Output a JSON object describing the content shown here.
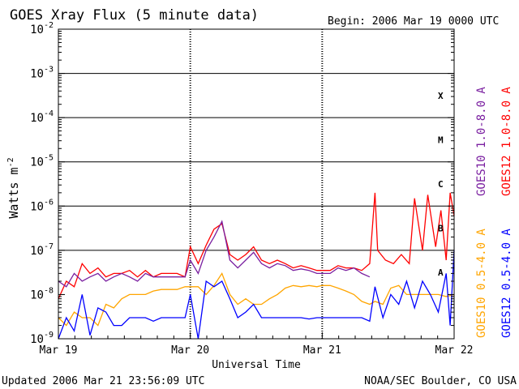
{
  "title": "GOES Xray Flux (5 minute data)",
  "begin": "Begin:  2006 Mar 19 0000 UTC",
  "updated": "Updated 2006 Mar 21 23:56:09 UTC",
  "credit": "NOAA/SEC Boulder, CO USA",
  "colors": {
    "goes10_long": "#7a1fa0",
    "goes12_long": "#ff0000",
    "goes10_short": "#ffa500",
    "goes12_short": "#0000ff"
  },
  "chart_data": {
    "type": "line",
    "title": "GOES Xray Flux (5 minute data)",
    "xlabel": "Universal Time",
    "ylabel": "Watts m",
    "ylabel_sup": "-2",
    "yscale": "log",
    "ylim": [
      1e-09,
      0.01
    ],
    "yticks": [
      {
        "base": "10",
        "exp": "-2"
      },
      {
        "base": "10",
        "exp": "-3"
      },
      {
        "base": "10",
        "exp": "-4"
      },
      {
        "base": "10",
        "exp": "-5"
      },
      {
        "base": "10",
        "exp": "-6"
      },
      {
        "base": "10",
        "exp": "-7"
      },
      {
        "base": "10",
        "exp": "-8"
      },
      {
        "base": "10",
        "exp": "-9"
      }
    ],
    "xticks": [
      "Mar 19",
      "Mar 20",
      "Mar 21",
      "Mar 22"
    ],
    "class_labels": [
      "X",
      "M",
      "C",
      "B",
      "A"
    ],
    "class_grid": [
      1e-07,
      1e-06,
      1e-05,
      0.0001,
      0.001
    ],
    "right_legend": [
      "GOES12 1.0-8.0 A",
      "GOES10 1.0-8.0 A",
      "GOES12 0.5-4.0 A",
      "GOES10 0.5-4.0 A"
    ],
    "series": [
      {
        "name": "GOES12 1.0-8.0 A",
        "color": "#ff0000",
        "x": [
          0,
          0.06,
          0.12,
          0.18,
          0.24,
          0.3,
          0.36,
          0.42,
          0.48,
          0.54,
          0.6,
          0.66,
          0.72,
          0.78,
          0.84,
          0.9,
          0.96,
          1.0,
          1.06,
          1.12,
          1.18,
          1.24,
          1.3,
          1.36,
          1.42,
          1.48,
          1.54,
          1.6,
          1.66,
          1.72,
          1.78,
          1.84,
          1.9,
          1.96,
          2.0,
          2.06,
          2.12,
          2.18,
          2.24,
          2.3,
          2.36,
          2.4,
          2.42,
          2.48,
          2.54,
          2.6,
          2.66,
          2.7,
          2.76,
          2.8,
          2.86,
          2.9,
          2.94,
          2.97,
          3.0
        ],
        "y": [
          8e-09,
          2e-08,
          1.5e-08,
          5e-08,
          3e-08,
          4e-08,
          2.5e-08,
          3e-08,
          3e-08,
          3.5e-08,
          2.5e-08,
          3.5e-08,
          2.5e-08,
          3e-08,
          3e-08,
          3e-08,
          2.5e-08,
          1.2e-07,
          5e-08,
          1.3e-07,
          3e-07,
          4e-07,
          8e-08,
          6e-08,
          8e-08,
          1.2e-07,
          6e-08,
          5e-08,
          6e-08,
          5e-08,
          4e-08,
          4.5e-08,
          4e-08,
          3.5e-08,
          3.5e-08,
          3.5e-08,
          4.5e-08,
          4e-08,
          4e-08,
          3.5e-08,
          5e-08,
          2e-06,
          1e-07,
          6e-08,
          5e-08,
          8e-08,
          5e-08,
          1.5e-06,
          1e-07,
          1.8e-06,
          1.2e-07,
          8e-07,
          6e-08,
          2e-06,
          6e-07
        ]
      },
      {
        "name": "GOES10 1.0-8.0 A",
        "color": "#7a1fa0",
        "x": [
          0,
          0.06,
          0.12,
          0.18,
          0.24,
          0.3,
          0.36,
          0.42,
          0.48,
          0.54,
          0.6,
          0.66,
          0.72,
          0.78,
          0.84,
          0.9,
          0.96,
          1.0,
          1.06,
          1.12,
          1.18,
          1.24,
          1.3,
          1.36,
          1.42,
          1.48,
          1.54,
          1.6,
          1.66,
          1.72,
          1.78,
          1.84,
          1.9,
          1.96,
          2.0,
          2.06,
          2.12,
          2.18,
          2.24,
          2.3,
          2.36
        ],
        "y": [
          2e-08,
          1.5e-08,
          3e-08,
          2e-08,
          2.5e-08,
          3e-08,
          2e-08,
          2.5e-08,
          3e-08,
          2.5e-08,
          2e-08,
          3e-08,
          2.5e-08,
          2.5e-08,
          2.5e-08,
          2.5e-08,
          2.5e-08,
          6e-08,
          3e-08,
          1e-07,
          2e-07,
          4.5e-07,
          6e-08,
          4e-08,
          6e-08,
          9e-08,
          5e-08,
          4e-08,
          5e-08,
          4.5e-08,
          3.5e-08,
          3.8e-08,
          3.5e-08,
          3e-08,
          3e-08,
          3e-08,
          4e-08,
          3.5e-08,
          4e-08,
          3e-08,
          2.5e-08
        ]
      },
      {
        "name": "GOES10 0.5-4.0 A",
        "color": "#ffa500",
        "x": [
          0,
          0.06,
          0.12,
          0.18,
          0.24,
          0.3,
          0.36,
          0.42,
          0.48,
          0.54,
          0.6,
          0.66,
          0.72,
          0.78,
          0.84,
          0.9,
          0.96,
          1.0,
          1.06,
          1.12,
          1.18,
          1.24,
          1.3,
          1.36,
          1.42,
          1.48,
          1.54,
          1.6,
          1.66,
          1.72,
          1.78,
          1.84,
          1.9,
          1.96,
          2.0,
          2.06,
          2.12,
          2.18,
          2.24,
          2.3,
          2.36,
          2.4,
          2.46,
          2.52,
          2.58,
          2.64,
          2.7,
          2.76,
          2.82,
          2.88,
          2.94,
          3.0
        ],
        "y": [
          3e-09,
          2e-09,
          4e-09,
          3e-09,
          3e-09,
          2e-09,
          6e-09,
          5e-09,
          8e-09,
          1e-08,
          1e-08,
          1e-08,
          1.2e-08,
          1.3e-08,
          1.3e-08,
          1.3e-08,
          1.5e-08,
          1.5e-08,
          1.5e-08,
          1e-08,
          1.6e-08,
          3e-08,
          1e-08,
          6e-09,
          8e-09,
          6e-09,
          6e-09,
          8e-09,
          1e-08,
          1.4e-08,
          1.6e-08,
          1.5e-08,
          1.6e-08,
          1.5e-08,
          1.6e-08,
          1.6e-08,
          1.4e-08,
          1.2e-08,
          1e-08,
          7e-09,
          6e-09,
          7e-09,
          6e-09,
          1.4e-08,
          1.6e-08,
          1e-08,
          1e-08,
          1e-08,
          1e-08,
          1e-08,
          9e-09,
          1e-08
        ]
      },
      {
        "name": "GOES12 0.5-4.0 A",
        "color": "#0000ff",
        "x": [
          0,
          0.06,
          0.12,
          0.18,
          0.24,
          0.3,
          0.36,
          0.42,
          0.48,
          0.54,
          0.6,
          0.66,
          0.72,
          0.78,
          0.84,
          0.9,
          0.96,
          1.0,
          1.06,
          1.12,
          1.18,
          1.24,
          1.3,
          1.36,
          1.42,
          1.48,
          1.54,
          1.6,
          1.66,
          1.72,
          1.78,
          1.84,
          1.9,
          1.96,
          2.0,
          2.06,
          2.12,
          2.18,
          2.24,
          2.3,
          2.36,
          2.4,
          2.46,
          2.52,
          2.58,
          2.64,
          2.7,
          2.76,
          2.82,
          2.88,
          2.94,
          2.97,
          3.0
        ],
        "y": [
          1e-09,
          3e-09,
          1.5e-09,
          1e-08,
          1.2e-09,
          5e-09,
          4e-09,
          2e-09,
          2e-09,
          3e-09,
          3e-09,
          3e-09,
          2.5e-09,
          3e-09,
          3e-09,
          3e-09,
          3e-09,
          1e-08,
          1e-09,
          2e-08,
          1.5e-08,
          2e-08,
          8e-09,
          3e-09,
          4e-09,
          6e-09,
          3e-09,
          3e-09,
          3e-09,
          3e-09,
          3e-09,
          3e-09,
          2.8e-09,
          3e-09,
          3e-09,
          3e-09,
          3e-09,
          3e-09,
          3e-09,
          3e-09,
          2.5e-09,
          1.5e-08,
          3e-09,
          1e-08,
          6e-09,
          2e-08,
          5e-09,
          2e-08,
          1e-08,
          4e-09,
          3e-08,
          2e-09,
          1e-07
        ]
      }
    ]
  }
}
